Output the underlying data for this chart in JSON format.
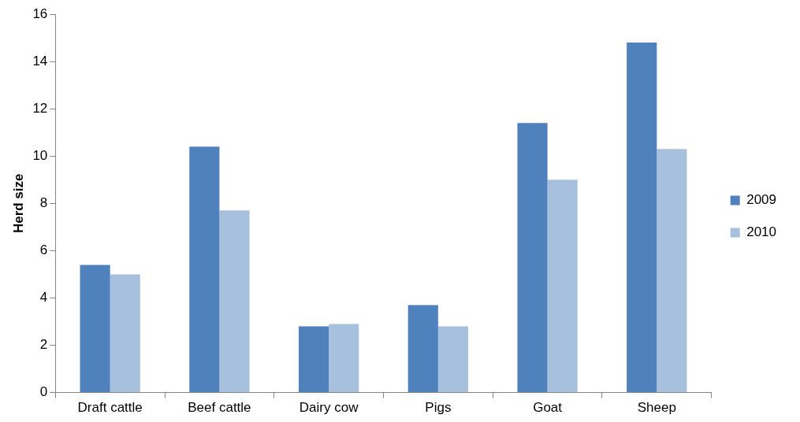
{
  "chart_data": {
    "type": "bar",
    "ylabel": "Herd size",
    "categories": [
      "Draft cattle",
      "Beef cattle",
      "Dairy cow",
      "Pigs",
      "Goat",
      "Sheep"
    ],
    "series": [
      {
        "name": "2009",
        "color": "#4f81bd",
        "values": [
          5.4,
          10.4,
          2.8,
          3.7,
          11.4,
          14.8
        ]
      },
      {
        "name": "2010",
        "color": "#a7c0de",
        "values": [
          5.0,
          7.7,
          2.9,
          2.8,
          9.0,
          10.3
        ]
      }
    ],
    "ylim": [
      0,
      16
    ],
    "yticks": [
      0,
      2,
      4,
      6,
      8,
      10,
      12,
      14,
      16
    ],
    "grid": false,
    "legend": "right"
  }
}
